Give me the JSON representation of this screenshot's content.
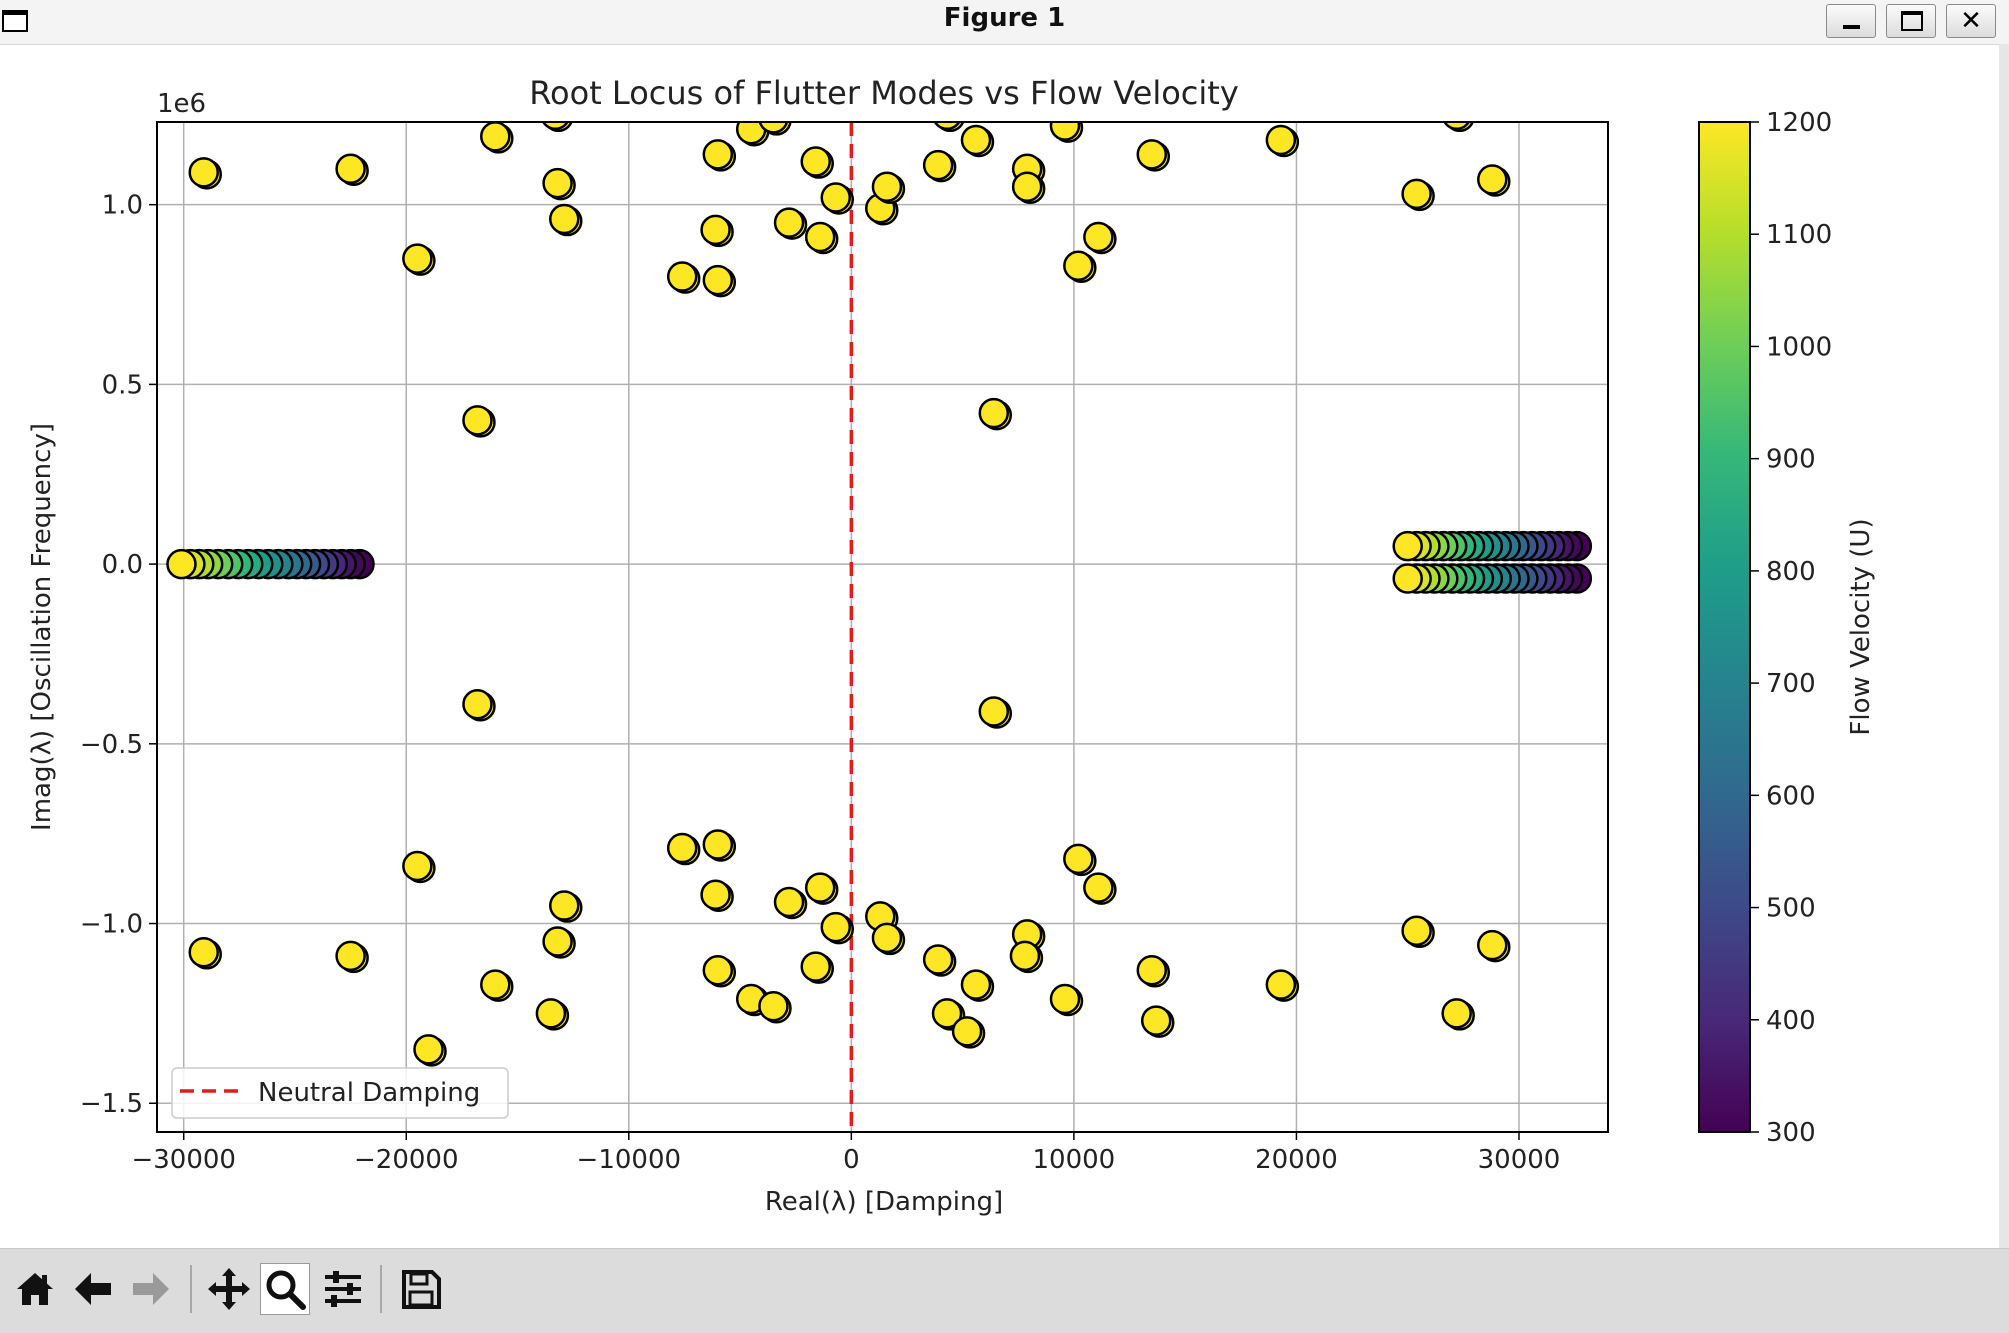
{
  "window": {
    "title": "Figure 1",
    "buttons": {
      "minimize": "_",
      "maximize": "□",
      "close": "✕"
    }
  },
  "toolbar": {
    "items": [
      {
        "name": "home",
        "icon": "home-icon",
        "active": false
      },
      {
        "name": "back",
        "icon": "arrow-left-icon",
        "active": false
      },
      {
        "name": "forward",
        "icon": "arrow-right-icon",
        "active": false,
        "disabled": true
      },
      {
        "name": "pan",
        "icon": "move-icon",
        "active": false
      },
      {
        "name": "zoom",
        "icon": "magnifier-icon",
        "active": true
      },
      {
        "name": "configure",
        "icon": "sliders-icon",
        "active": false
      },
      {
        "name": "save",
        "icon": "floppy-disk-icon",
        "active": false
      }
    ]
  },
  "chart_data": {
    "type": "scatter",
    "title": "Root Locus of Flutter Modes vs Flow Velocity",
    "xlabel": "Real(λ) [Damping]",
    "ylabel": "Imag(λ) [Oscillation Frequency]",
    "xlim": [
      -31200,
      34000
    ],
    "ylim": [
      -1.58,
      1.23
    ],
    "y_offset_label": "1e6",
    "xticks": [
      -30000,
      -20000,
      -10000,
      0,
      10000,
      20000,
      30000
    ],
    "xtick_labels": [
      "−30000",
      "−20000",
      "−10000",
      "0",
      "10000",
      "20000",
      "30000"
    ],
    "yticks": [
      -1.5,
      -1.0,
      -0.5,
      0.0,
      0.5,
      1.0
    ],
    "ytick_labels": [
      "−1.5",
      "−1.0",
      "−0.5",
      "0.0",
      "0.5",
      "1.0"
    ],
    "grid": true,
    "legend": {
      "position": "bottom-left",
      "entries": [
        {
          "label": "Neutral Damping",
          "style": "dashed",
          "color": "#e41a1c"
        }
      ]
    },
    "reference_line": {
      "orientation": "vertical",
      "x": 0,
      "color": "#e41a1c",
      "style": "dashed"
    },
    "colorbar": {
      "label": "Flow Velocity (U)",
      "min": 300,
      "max": 1200,
      "ticks": [
        300,
        400,
        500,
        600,
        700,
        800,
        900,
        1000,
        1100,
        1200
      ],
      "colormap": "viridis"
    },
    "marker": {
      "edge_color": "#000000",
      "fill_color_high": "#fde725"
    },
    "series_real_axis_left": {
      "x": [
        -30100,
        -29700,
        -29300,
        -28900,
        -28450,
        -28000,
        -27550,
        -27100,
        -26650,
        -26200,
        -25750,
        -25300,
        -24900,
        -24500,
        -24100,
        -23700,
        -23300,
        -22900,
        -22500,
        -22100
      ],
      "y": [
        0,
        0,
        0,
        0,
        0,
        0,
        0,
        0,
        0,
        0,
        0,
        0,
        0,
        0,
        0,
        0,
        0,
        0,
        0,
        0
      ],
      "velocity": [
        1200,
        1150,
        1100,
        1050,
        1000,
        950,
        900,
        850,
        800,
        750,
        700,
        650,
        600,
        550,
        500,
        450,
        400,
        350,
        320,
        300
      ]
    },
    "series_right_cluster_upper": {
      "x": [
        25000,
        25400,
        25800,
        26200,
        26600,
        27000,
        27400,
        27800,
        28200,
        28600,
        29000,
        29400,
        29800,
        30200,
        30600,
        31000,
        31400,
        31800,
        32200,
        32600
      ],
      "y": [
        0.05,
        0.05,
        0.05,
        0.05,
        0.05,
        0.05,
        0.05,
        0.05,
        0.05,
        0.05,
        0.05,
        0.05,
        0.05,
        0.05,
        0.05,
        0.05,
        0.05,
        0.05,
        0.05,
        0.05
      ],
      "velocity": [
        1200,
        1150,
        1100,
        1050,
        1000,
        950,
        900,
        850,
        800,
        750,
        700,
        650,
        600,
        550,
        500,
        450,
        400,
        350,
        320,
        300
      ]
    },
    "series_right_cluster_lower": {
      "x": [
        25000,
        25400,
        25800,
        26200,
        26600,
        27000,
        27400,
        27800,
        28200,
        28600,
        29000,
        29400,
        29800,
        30200,
        30600,
        31000,
        31400,
        31800,
        32200,
        32600
      ],
      "y": [
        -0.04,
        -0.04,
        -0.04,
        -0.04,
        -0.04,
        -0.04,
        -0.04,
        -0.04,
        -0.04,
        -0.04,
        -0.04,
        -0.04,
        -0.04,
        -0.04,
        -0.04,
        -0.04,
        -0.04,
        -0.04,
        -0.04,
        -0.04
      ],
      "velocity": [
        1200,
        1150,
        1100,
        1050,
        1000,
        950,
        900,
        850,
        800,
        750,
        700,
        650,
        600,
        550,
        500,
        450,
        400,
        350,
        320,
        300
      ]
    },
    "series_scattered_modes": {
      "velocity": 1200,
      "points": [
        [
          -29100,
          1.09
        ],
        [
          -22500,
          1.1
        ],
        [
          -19500,
          0.85
        ],
        [
          -16800,
          0.4
        ],
        [
          -16000,
          1.19
        ],
        [
          -13300,
          1.25
        ],
        [
          -13200,
          1.06
        ],
        [
          -12900,
          0.96
        ],
        [
          -7600,
          0.8
        ],
        [
          -6000,
          1.14
        ],
        [
          -6100,
          0.93
        ],
        [
          -6000,
          0.79
        ],
        [
          -4500,
          1.21
        ],
        [
          -3500,
          1.24
        ],
        [
          -2800,
          0.95
        ],
        [
          -1600,
          1.12
        ],
        [
          -1400,
          0.91
        ],
        [
          -700,
          1.02
        ],
        [
          1300,
          0.99
        ],
        [
          1600,
          1.05
        ],
        [
          3900,
          1.11
        ],
        [
          4300,
          1.25
        ],
        [
          5600,
          1.18
        ],
        [
          6400,
          0.42
        ],
        [
          7900,
          1.1
        ],
        [
          7900,
          1.05
        ],
        [
          9600,
          1.22
        ],
        [
          10200,
          0.83
        ],
        [
          11100,
          0.91
        ],
        [
          13500,
          1.14
        ],
        [
          19300,
          1.18
        ],
        [
          25400,
          1.03
        ],
        [
          27200,
          1.25
        ],
        [
          28800,
          1.07
        ],
        [
          -29100,
          -1.08
        ],
        [
          -22500,
          -1.09
        ],
        [
          -19500,
          -0.84
        ],
        [
          -16800,
          -0.39
        ],
        [
          -19000,
          -1.35
        ],
        [
          -16000,
          -1.17
        ],
        [
          -13500,
          -1.25
        ],
        [
          -13200,
          -1.05
        ],
        [
          -12900,
          -0.95
        ],
        [
          -7600,
          -0.79
        ],
        [
          -6000,
          -0.78
        ],
        [
          -6100,
          -0.92
        ],
        [
          -6000,
          -1.13
        ],
        [
          -4500,
          -1.21
        ],
        [
          -3500,
          -1.23
        ],
        [
          -2800,
          -0.94
        ],
        [
          -1600,
          -1.12
        ],
        [
          -1400,
          -0.9
        ],
        [
          -700,
          -1.01
        ],
        [
          1300,
          -0.98
        ],
        [
          1600,
          -1.04
        ],
        [
          3900,
          -1.1
        ],
        [
          4300,
          -1.25
        ],
        [
          5200,
          -1.3
        ],
        [
          5600,
          -1.17
        ],
        [
          6400,
          -0.41
        ],
        [
          7900,
          -1.03
        ],
        [
          7800,
          -1.09
        ],
        [
          9600,
          -1.21
        ],
        [
          10200,
          -0.82
        ],
        [
          11100,
          -0.9
        ],
        [
          13500,
          -1.13
        ],
        [
          13700,
          -1.27
        ],
        [
          19300,
          -1.17
        ],
        [
          25400,
          -1.02
        ],
        [
          27200,
          -1.25
        ],
        [
          28800,
          -1.06
        ]
      ]
    }
  }
}
